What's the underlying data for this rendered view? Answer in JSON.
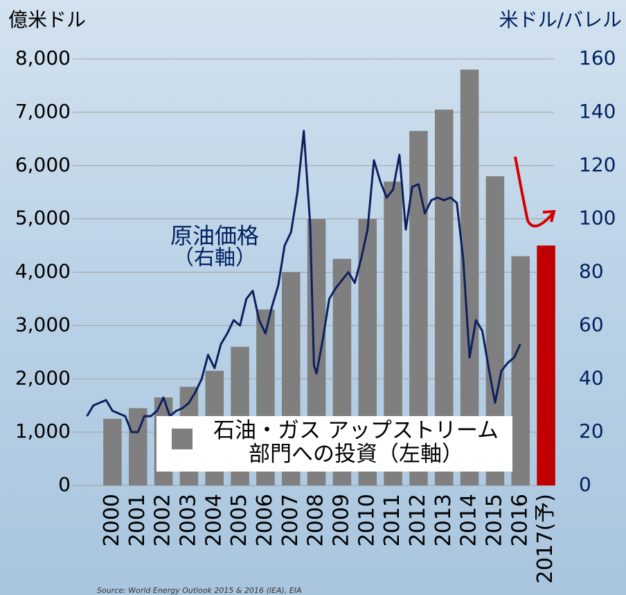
{
  "chart_data": {
    "type": "bar",
    "ylabel": "億米ドル",
    "y2label": "米ドル/バレル",
    "categories": [
      "2000",
      "2001",
      "2002",
      "2003",
      "2004",
      "2005",
      "2006",
      "2007",
      "2008",
      "2009",
      "2010",
      "2011",
      "2012",
      "2013",
      "2014",
      "2015",
      "2016",
      "2017(予)"
    ],
    "ylim": [
      0,
      8000
    ],
    "yticks": [
      0,
      {
        "value": 1000,
        "label": "1,000"
      },
      {
        "value": 2000,
        "label": "2,000"
      },
      {
        "value": 3000,
        "label": "3,000"
      },
      {
        "value": 4000,
        "label": "4,000"
      },
      {
        "value": 5000,
        "label": "5,000"
      },
      {
        "value": 6000,
        "label": "6,000"
      },
      {
        "value": 7000,
        "label": "7,000"
      },
      {
        "value": 8000,
        "label": "8,000"
      }
    ],
    "y2lim": [
      0,
      160
    ],
    "y2ticks": [
      0,
      20,
      40,
      60,
      80,
      100,
      120,
      140,
      160
    ],
    "grid": true,
    "series": [
      {
        "name": "石油・ガス アップストリーム部門への投資（左軸）",
        "type": "bar",
        "color": "#7f7f7f",
        "colors": [
          "#7f7f7f",
          "#7f7f7f",
          "#7f7f7f",
          "#7f7f7f",
          "#7f7f7f",
          "#7f7f7f",
          "#7f7f7f",
          "#7f7f7f",
          "#7f7f7f",
          "#7f7f7f",
          "#7f7f7f",
          "#7f7f7f",
          "#7f7f7f",
          "#7f7f7f",
          "#7f7f7f",
          "#7f7f7f",
          "#7f7f7f",
          "#c00000"
        ],
        "values": [
          1250,
          1450,
          1650,
          1850,
          2150,
          2600,
          3300,
          4000,
          5000,
          4250,
          5000,
          5700,
          6650,
          7050,
          7800,
          5800,
          4300,
          4500
        ]
      },
      {
        "type": "line",
        "axis": "y2",
        "color": "#0d1f5e",
        "x": [
          2000.0,
          2000.25,
          2000.5,
          2000.75,
          2001.0,
          2001.25,
          2001.5,
          2001.75,
          2002.0,
          2002.25,
          2002.5,
          2002.75,
          2003.0,
          2003.25,
          2003.5,
          2003.75,
          2004.0,
          2004.25,
          2004.5,
          2004.75,
          2005.0,
          2005.25,
          2005.5,
          2005.75,
          2006.0,
          2006.25,
          2006.5,
          2006.75,
          2007.0,
          2007.25,
          2007.5,
          2007.75,
          2008.0,
          2008.25,
          2008.5,
          2008.75,
          2008.9,
          2009.0,
          2009.25,
          2009.5,
          2009.75,
          2010.0,
          2010.25,
          2010.5,
          2010.75,
          2011.0,
          2011.25,
          2011.5,
          2011.75,
          2012.0,
          2012.25,
          2012.5,
          2012.75,
          2013.0,
          2013.25,
          2013.5,
          2013.75,
          2014.0,
          2014.25,
          2014.5,
          2014.75,
          2015.0,
          2015.25,
          2015.5,
          2015.75,
          2016.0,
          2016.25,
          2016.5,
          2016.75,
          2016.99
        ],
        "values": [
          26,
          30,
          31,
          32,
          28,
          27,
          26,
          20,
          20,
          26,
          26,
          28,
          33,
          26,
          28,
          29,
          31,
          35,
          40,
          49,
          44,
          53,
          57,
          62,
          60,
          70,
          73,
          62,
          57,
          67,
          75,
          90,
          95,
          110,
          133,
          98,
          45,
          42,
          55,
          70,
          74,
          77,
          80,
          76,
          85,
          96,
          122,
          114,
          108,
          111,
          124,
          96,
          112,
          113,
          102,
          107,
          108,
          107,
          108,
          106,
          85,
          48,
          62,
          58,
          44,
          31,
          43,
          46,
          48,
          53
        ]
      }
    ],
    "annotations": [
      "原油価格",
      "（右軸）"
    ],
    "source": "Source: World Energy Outlook 2015 & 2016 (IEA), EIA"
  }
}
